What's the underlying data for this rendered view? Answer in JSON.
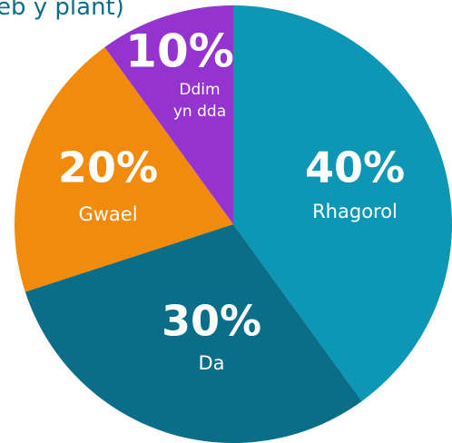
{
  "chart_data": {
    "type": "pie",
    "title": "eb y plant)",
    "slices": [
      {
        "label": "Rhagorol",
        "label_lines": [
          "Rhagorol"
        ],
        "value": 40,
        "value_label": "40%",
        "color": "#0e97b4"
      },
      {
        "label": "Da",
        "label_lines": [
          "Da"
        ],
        "value": 30,
        "value_label": "30%",
        "color": "#0b6e88"
      },
      {
        "label": "Gwael",
        "label_lines": [
          "Gwael"
        ],
        "value": 20,
        "value_label": "20%",
        "color": "#f28b0c"
      },
      {
        "label": "Ddim yn dda",
        "label_lines": [
          "Ddim",
          "yn dda"
        ],
        "value": 10,
        "value_label": "10%",
        "color": "#9533d0"
      }
    ],
    "start": "12 o'clock",
    "direction": "clockwise",
    "legend": "none"
  }
}
